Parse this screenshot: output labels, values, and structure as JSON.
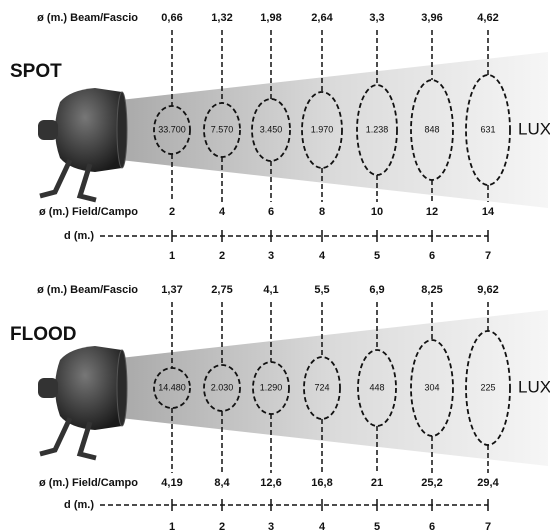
{
  "panels": [
    {
      "title": "SPOT",
      "beam_label": "ø (m.) Beam/Fascio",
      "beam": [
        "0,66",
        "1,32",
        "1,98",
        "2,64",
        "3,3",
        "3,96",
        "4,62"
      ],
      "lux": [
        "33.700",
        "7.570",
        "3.450",
        "1.970",
        "1.238",
        "848",
        "631"
      ],
      "unit": "LUX",
      "field_label": "ø (m.) Field/Campo",
      "field": [
        "2",
        "4",
        "6",
        "8",
        "10",
        "12",
        "14"
      ],
      "d_label": "d (m.)",
      "d": [
        "1",
        "2",
        "3",
        "4",
        "5",
        "6",
        "7"
      ]
    },
    {
      "title": "FLOOD",
      "beam_label": "ø (m.) Beam/Fascio",
      "beam": [
        "1,37",
        "2,75",
        "4,1",
        "5,5",
        "6,9",
        "8,25",
        "9,62"
      ],
      "lux": [
        "14.480",
        "2.030",
        "1.290",
        "724",
        "448",
        "304",
        "225"
      ],
      "unit": "LUX",
      "field_label": "ø (m.) Field/Campo",
      "field": [
        "4,19",
        "8,4",
        "12,6",
        "16,8",
        "21",
        "25,2",
        "29,4"
      ],
      "d_label": "d (m.)",
      "d": [
        "1",
        "2",
        "3",
        "4",
        "5",
        "6",
        "7"
      ]
    }
  ]
}
